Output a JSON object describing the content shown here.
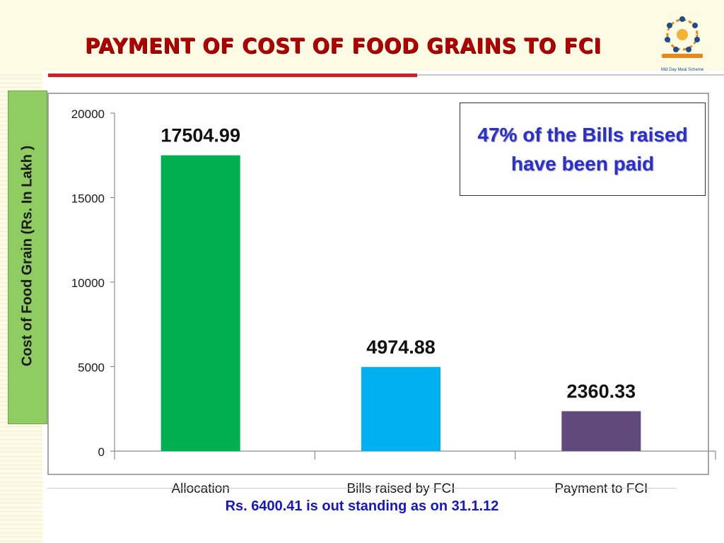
{
  "slide": {
    "title": "Payment of Cost of Food Grains to FCI",
    "callout": "47% of the Bills raised have been paid",
    "footer": "Rs. 6400.41 is out standing as on 31.1.12",
    "logo_caption": "Mid Day Meal Scheme"
  },
  "colors": {
    "title": "#b00000",
    "accent_rule": "#d42020",
    "callout_text": "#2a2fd0",
    "footer_text": "#1616c8",
    "ylabel_panel": "#8fcc62"
  },
  "chart_data": {
    "type": "bar",
    "title": "",
    "ylabel": "Cost of Food Grain (Rs. In Lakh )",
    "xlabel": "",
    "ylim": [
      0,
      20000
    ],
    "yticks": [
      0,
      5000,
      10000,
      15000,
      20000
    ],
    "categories": [
      "Allocation",
      "Bills raised by FCI",
      "Payment to FCI"
    ],
    "values": [
      17504.99,
      4974.88,
      2360.33
    ],
    "value_labels": [
      "17504.99",
      "4974.88",
      "2360.33"
    ],
    "colors": [
      "#00b050",
      "#00b0f0",
      "#604a7b"
    ],
    "grid": false,
    "legend": "none"
  }
}
